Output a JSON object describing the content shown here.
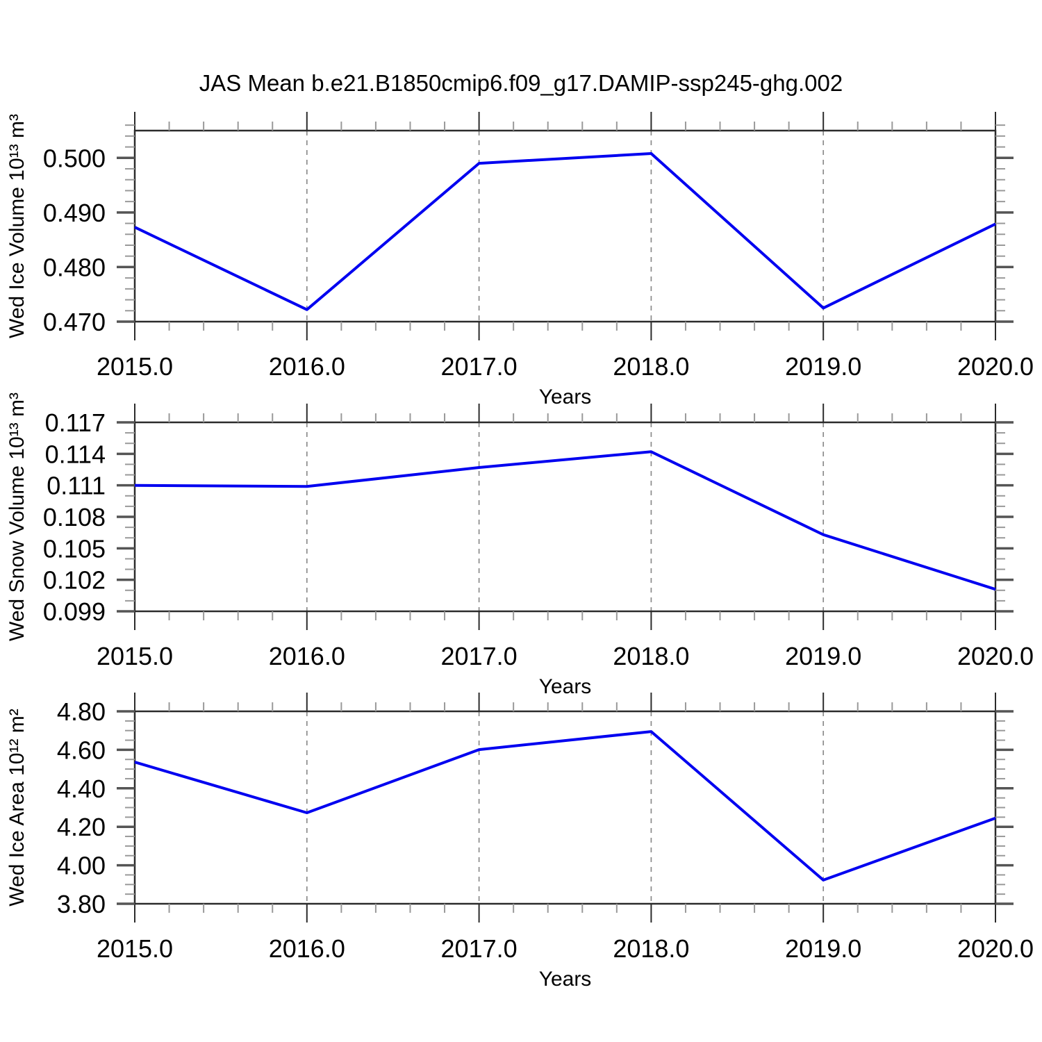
{
  "title": "JAS Mean b.e21.B1850cmip6.f09_g17.DAMIP-ssp245-ghg.002",
  "colors": {
    "line": "#0000f0",
    "frame": "#2b2b2b",
    "major_tick": "#555555",
    "minor_tick": "#999999",
    "gridline": "#8a8a8a",
    "text": "#000000"
  },
  "x_axis": {
    "label": "Years",
    "min": 2015.0,
    "max": 2020.0,
    "major_ticks": [
      2015.0,
      2016.0,
      2017.0,
      2018.0,
      2019.0,
      2020.0
    ],
    "tick_labels": [
      "2015.0",
      "2016.0",
      "2017.0",
      "2018.0",
      "2019.0",
      "2020.0"
    ],
    "minor_step": 0.2,
    "gridlines_at": [
      2016.0,
      2017.0,
      2018.0,
      2019.0
    ]
  },
  "chart_data": [
    {
      "type": "line",
      "name": "wed-ice-volume",
      "title": "",
      "ylabel": "Wed Ice Volume 10¹³ m³",
      "xlabel": "Years",
      "x": [
        2015.0,
        2016.0,
        2017.0,
        2018.0,
        2019.0,
        2020.0
      ],
      "values": [
        0.4873,
        0.4722,
        0.499,
        0.5008,
        0.4725,
        0.4879
      ],
      "ylim": [
        0.47,
        0.505
      ],
      "ytick_values": [
        0.5,
        0.49,
        0.48,
        0.47
      ],
      "ytick_labels": [
        "0.500",
        "0.490",
        "0.480",
        "0.470"
      ],
      "y_minor_step": 0.002,
      "grid": "vertical-dashed",
      "legend": "none"
    },
    {
      "type": "line",
      "name": "wed-snow-volume",
      "title": "",
      "ylabel": "Wed Snow Volume 10¹³ m³",
      "xlabel": "Years",
      "x": [
        2015.0,
        2016.0,
        2017.0,
        2018.0,
        2019.0,
        2020.0
      ],
      "values": [
        0.111,
        0.1109,
        0.1127,
        0.1142,
        0.1063,
        0.1011
      ],
      "ylim": [
        0.099,
        0.117
      ],
      "ytick_values": [
        0.117,
        0.114,
        0.111,
        0.108,
        0.105,
        0.102,
        0.099
      ],
      "ytick_labels": [
        "0.117",
        "0.114",
        "0.111",
        "0.108",
        "0.105",
        "0.102",
        "0.099"
      ],
      "y_minor_step": 0.001,
      "grid": "vertical-dashed",
      "legend": "none"
    },
    {
      "type": "line",
      "name": "wed-ice-area",
      "title": "",
      "ylabel": "Wed Ice Area 10¹² m²",
      "xlabel": "Years",
      "x": [
        2015.0,
        2016.0,
        2017.0,
        2018.0,
        2019.0,
        2020.0
      ],
      "values": [
        4.536,
        4.273,
        4.601,
        4.695,
        3.923,
        4.245
      ],
      "ylim": [
        3.8,
        4.8
      ],
      "ytick_values": [
        4.8,
        4.6,
        4.4,
        4.2,
        4.0,
        3.8
      ],
      "ytick_labels": [
        "4.80",
        "4.60",
        "4.40",
        "4.20",
        "4.00",
        "3.80"
      ],
      "y_minor_step": 0.05,
      "grid": "vertical-dashed",
      "legend": "none"
    }
  ]
}
